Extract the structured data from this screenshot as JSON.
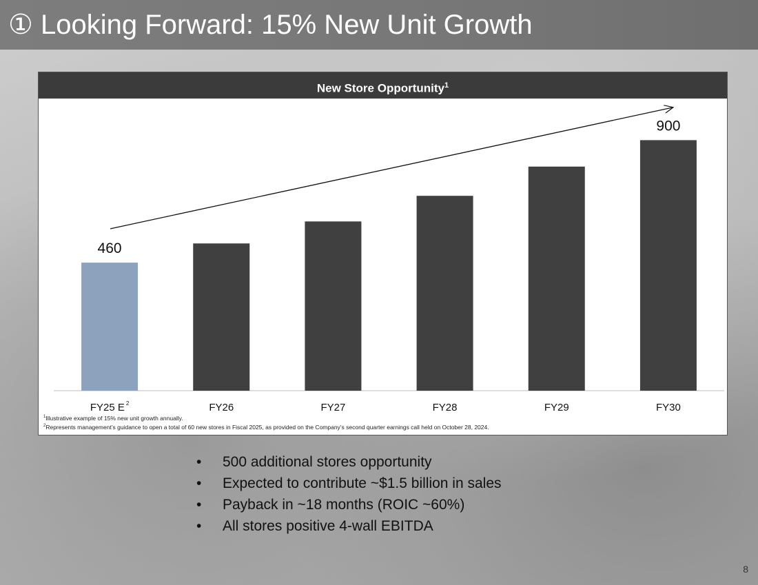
{
  "slide": {
    "title": "① Looking Forward: 15% New Unit Growth",
    "page_number": "8"
  },
  "chart_header": {
    "title": "New Store Opportunity",
    "superscript": "1"
  },
  "chart_data": {
    "type": "bar",
    "title": "New Store Opportunity",
    "categories": [
      "FY25 E",
      "FY26",
      "FY27",
      "FY28",
      "FY29",
      "FY30"
    ],
    "category_superscripts": [
      "2",
      "",
      "",
      "",
      "",
      ""
    ],
    "values": [
      460,
      529,
      608,
      700,
      805,
      900
    ],
    "data_labels": [
      "460",
      "",
      "",
      "",
      "",
      "900"
    ],
    "ylim": [
      0,
      1000
    ],
    "grid": false,
    "xlabel": "",
    "ylabel": "",
    "colors": {
      "highlight": "#8ca2bd",
      "default": "#404040"
    },
    "annotations": [
      {
        "type": "trend-arrow",
        "from": "FY25 E",
        "to": "FY30"
      }
    ]
  },
  "footnotes": [
    {
      "marker": "1",
      "text": "Illustrative example of 15% new unit growth annually."
    },
    {
      "marker": "2",
      "text": "Represents management’s guidance to open a total of 60 new stores in Fiscal 2025, as provided on the Company’s second quarter earnings call held on October 28, 2024."
    }
  ],
  "bullets": [
    "500 additional stores opportunity",
    "Expected to contribute ~$1.5 billion in sales",
    "Payback in ~18 months (ROIC ~60%)",
    "All stores positive 4-wall EBITDA"
  ]
}
